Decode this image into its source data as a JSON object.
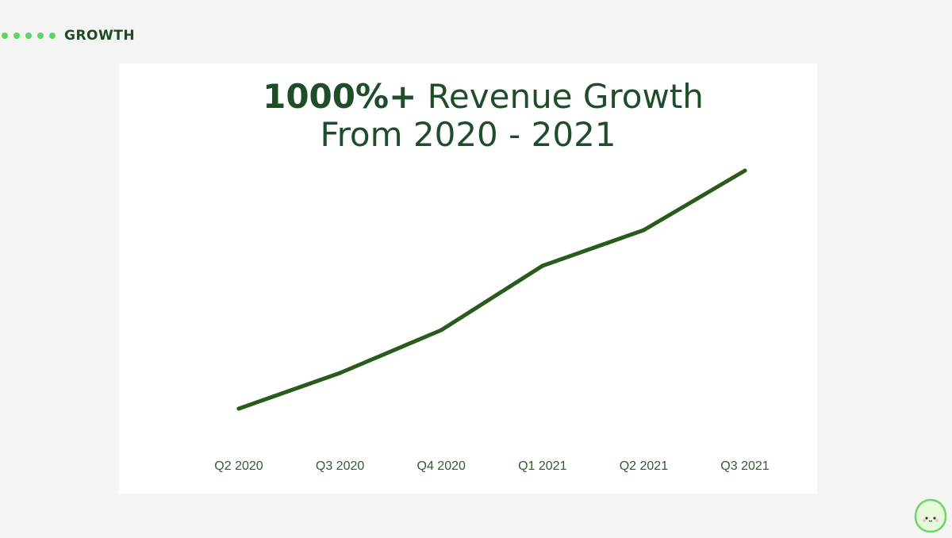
{
  "section": {
    "label": "GROWTH",
    "dot_count": 5,
    "dot_color": "#5fd368"
  },
  "title": {
    "strong": "1000%+",
    "rest": " Revenue Growth",
    "line2": "From 2020 - 2021"
  },
  "colors": {
    "background": "#f4f4f2",
    "card": "#ffffff",
    "title": "#1f4d2a",
    "line": "#2a5a1c",
    "tick_label": "#2e5b30"
  },
  "chart_data": {
    "type": "line",
    "title": "1000%+ Revenue Growth From 2020 - 2021",
    "xlabel": "",
    "ylabel": "",
    "categories": [
      "Q2 2020",
      "Q3 2020",
      "Q4 2020",
      "Q1 2021",
      "Q2 2021",
      "Q3 2021"
    ],
    "series": [
      {
        "values": [
          0,
          15,
          33,
          60,
          75,
          100
        ]
      }
    ],
    "ylim": [
      0,
      100
    ],
    "y_axis_visible": false,
    "grid": false,
    "legend": "none"
  },
  "mascot": {
    "icon": "avocado-mascot-icon"
  }
}
